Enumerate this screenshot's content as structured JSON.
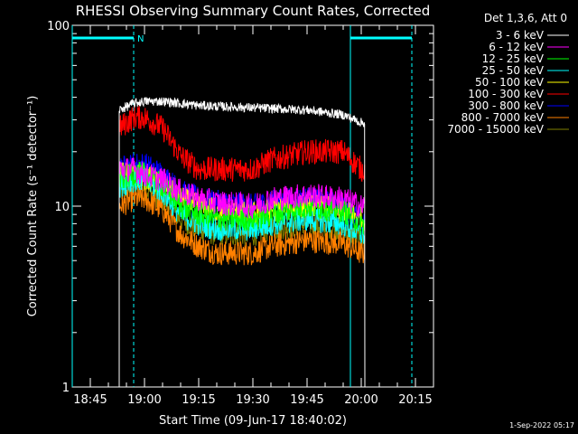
{
  "chart_data": {
    "type": "line",
    "title": "RHESSI Observing Summary Count Rates, Corrected",
    "xlabel": "Start Time (09-Jun-17 18:40:02)",
    "ylabel": "Corrected Count Rate (s⁻¹ detector⁻¹)",
    "x_tick_labels": [
      "18:45",
      "19:00",
      "19:15",
      "19:30",
      "19:45",
      "20:00",
      "20:15"
    ],
    "x_tick_minutes": [
      5,
      20,
      35,
      50,
      65,
      80,
      95
    ],
    "xlim_minutes": [
      0,
      100
    ],
    "y_scale": "log",
    "ylim": [
      1,
      100
    ],
    "y_tick_labels": [
      "1",
      "10",
      "100"
    ],
    "y_tick_values": [
      1,
      10,
      100
    ],
    "grid": false,
    "legend": {
      "placement": "right",
      "header": "Det 1,3,6, Att 0"
    },
    "annotation_label": "N",
    "timestamp": "1-Sep-2022 05:17",
    "data_window_minutes": [
      13,
      81
    ],
    "vertical_markers": [
      {
        "minute": 0,
        "style": "solid",
        "color": "#00ffff"
      },
      {
        "minute": 17,
        "style": "dashed",
        "color": "#00ffff"
      },
      {
        "minute": 77,
        "style": "solid",
        "color": "#00ffff"
      },
      {
        "minute": 94,
        "style": "dashed",
        "color": "#00ffff"
      }
    ],
    "top_bars": [
      {
        "range_minutes": [
          0,
          17
        ],
        "color": "#00ffff"
      },
      {
        "range_minutes": [
          77,
          94
        ],
        "color": "#00ffff"
      }
    ],
    "series": [
      {
        "name": "3 - 6 keV",
        "color": "#ffffff",
        "x": [
          13,
          17,
          20,
          25,
          35,
          50,
          65,
          75,
          80
        ],
        "y": [
          34,
          37,
          38,
          38,
          36,
          35,
          34,
          32,
          29
        ]
      },
      {
        "name": "6 - 12 keV",
        "color": "#ff00ff",
        "x": [
          13,
          17,
          20,
          25,
          30,
          35,
          40,
          50,
          55,
          65,
          75,
          80
        ],
        "y": [
          16,
          16,
          15,
          14,
          12,
          11,
          10.5,
          10,
          11,
          11.5,
          11,
          10
        ]
      },
      {
        "name": "12 - 25 keV",
        "color": "#00ff00",
        "x": [
          13,
          17,
          20,
          25,
          30,
          35,
          40,
          50,
          55,
          65,
          75,
          80
        ],
        "y": [
          14,
          15,
          15,
          13,
          10,
          9,
          8.5,
          8.5,
          9,
          10,
          9.5,
          8
        ]
      },
      {
        "name": "25 - 50 keV",
        "color": "#00ffff",
        "x": [
          13,
          17,
          20,
          25,
          30,
          35,
          40,
          50,
          55,
          65,
          75,
          80
        ],
        "y": [
          13,
          14,
          14,
          12,
          9,
          8,
          7.5,
          7.5,
          8,
          8.5,
          8,
          7
        ]
      },
      {
        "name": "50 - 100 keV",
        "color": "#ffff00",
        "x": [
          13,
          17,
          20,
          25,
          30,
          35,
          40,
          50,
          55,
          65,
          75,
          80
        ],
        "y": [
          15,
          15,
          14.5,
          13,
          11,
          10,
          9.5,
          9,
          9.5,
          10,
          9.5,
          8.5
        ]
      },
      {
        "name": "100 - 300 keV",
        "color": "#ff0000",
        "x": [
          13,
          17,
          20,
          25,
          30,
          35,
          40,
          50,
          55,
          65,
          75,
          80
        ],
        "y": [
          27,
          31,
          31,
          27,
          19,
          16,
          16,
          16,
          18,
          20,
          20,
          16
        ]
      },
      {
        "name": "300 - 800 keV",
        "color": "#0000ff",
        "x": [
          13,
          17,
          20,
          25,
          30,
          35,
          40,
          50,
          55,
          65,
          75,
          80
        ],
        "y": [
          16,
          17,
          17,
          15,
          12,
          11,
          10.5,
          10,
          10.5,
          11,
          10,
          8.5
        ]
      },
      {
        "name": "800 - 7000 keV",
        "color": "#ff8000",
        "x": [
          13,
          17,
          20,
          25,
          30,
          35,
          40,
          50,
          55,
          65,
          75,
          80
        ],
        "y": [
          10,
          11,
          11,
          9.5,
          7,
          6,
          5.5,
          5.5,
          6,
          6.5,
          6.2,
          5.5
        ]
      },
      {
        "name": "7000 - 15000 keV",
        "color": "#808000",
        "x": [
          13,
          17,
          20,
          25,
          30,
          35,
          40,
          50,
          55,
          65,
          75,
          80
        ],
        "y": [
          12,
          13,
          12.5,
          11,
          8.5,
          7.5,
          7,
          7,
          7.5,
          8,
          7.5,
          6.5
        ]
      }
    ]
  }
}
